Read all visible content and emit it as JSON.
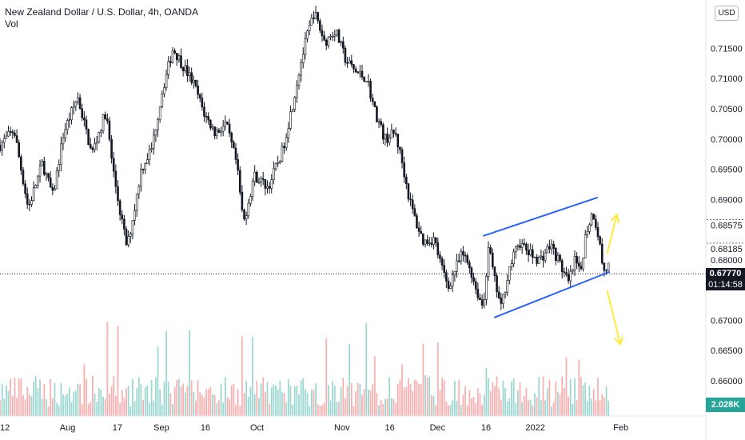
{
  "legend": {
    "title": "New Zealand Dollar / U.S. Dollar, 4h, OANDA",
    "volume_label": "Vol"
  },
  "currency_badge": "USD",
  "current_price": "0.67770",
  "countdown": "01:14:58",
  "volume_value": "2.028K",
  "colors": {
    "up": "#26a69a",
    "down": "#ef5350",
    "candle": "#131722",
    "channel": "#2962ff",
    "arrow": "#ffeb3b",
    "axis_text": "#131722"
  },
  "chart_data": {
    "type": "candlestick",
    "symbol": "NZDUSD",
    "timeframe": "4h",
    "ylim": [
      0.6555,
      0.723
    ],
    "y_ticks": [
      "0.66000",
      "0.66500",
      "0.67000",
      "0.68000",
      "0.68185",
      "0.68575",
      "0.69000",
      "0.69500",
      "0.70000",
      "0.70500",
      "0.71000",
      "0.71500"
    ],
    "y_tick_values": [
      0.66,
      0.665,
      0.67,
      0.68,
      0.68185,
      0.68575,
      0.69,
      0.695,
      0.7,
      0.705,
      0.71,
      0.715
    ],
    "x_ticks": [
      "12",
      "Aug",
      "17",
      "Sep",
      "16",
      "Oct",
      "Nov",
      "16",
      "Dec",
      "16",
      "2022",
      "Feb"
    ],
    "x_tick_positions": [
      0.0,
      0.0958,
      0.1663,
      0.2287,
      0.291,
      0.3641,
      0.4845,
      0.5522,
      0.6199,
      0.6886,
      0.7584,
      0.8795
    ],
    "price_path": [
      [
        0.0,
        0.699
      ],
      [
        0.02,
        0.7015
      ],
      [
        0.04,
        0.6885
      ],
      [
        0.06,
        0.696
      ],
      [
        0.075,
        0.6905
      ],
      [
        0.09,
        0.701
      ],
      [
        0.11,
        0.707
      ],
      [
        0.13,
        0.6975
      ],
      [
        0.15,
        0.7045
      ],
      [
        0.16,
        0.695
      ],
      [
        0.17,
        0.688
      ],
      [
        0.18,
        0.682
      ],
      [
        0.19,
        0.688
      ],
      [
        0.2,
        0.695
      ],
      [
        0.215,
        0.6985
      ],
      [
        0.23,
        0.708
      ],
      [
        0.245,
        0.715
      ],
      [
        0.26,
        0.712
      ],
      [
        0.275,
        0.709
      ],
      [
        0.29,
        0.704
      ],
      [
        0.305,
        0.701
      ],
      [
        0.32,
        0.7025
      ],
      [
        0.335,
        0.696
      ],
      [
        0.345,
        0.686
      ],
      [
        0.36,
        0.694
      ],
      [
        0.38,
        0.692
      ],
      [
        0.4,
        0.698
      ],
      [
        0.415,
        0.706
      ],
      [
        0.425,
        0.712
      ],
      [
        0.435,
        0.717
      ],
      [
        0.445,
        0.721
      ],
      [
        0.46,
        0.716
      ],
      [
        0.475,
        0.718
      ],
      [
        0.49,
        0.713
      ],
      [
        0.505,
        0.711
      ],
      [
        0.52,
        0.71
      ],
      [
        0.53,
        0.705
      ],
      [
        0.545,
        0.7
      ],
      [
        0.56,
        0.701
      ],
      [
        0.57,
        0.696
      ],
      [
        0.58,
        0.69
      ],
      [
        0.59,
        0.686
      ],
      [
        0.6,
        0.683
      ],
      [
        0.615,
        0.6835
      ],
      [
        0.625,
        0.679
      ],
      [
        0.635,
        0.6755
      ],
      [
        0.645,
        0.6785
      ],
      [
        0.655,
        0.681
      ],
      [
        0.665,
        0.679
      ],
      [
        0.675,
        0.675
      ],
      [
        0.685,
        0.672
      ],
      [
        0.692,
        0.6825
      ],
      [
        0.7,
        0.677
      ],
      [
        0.71,
        0.672
      ],
      [
        0.72,
        0.678
      ],
      [
        0.735,
        0.683
      ],
      [
        0.75,
        0.681
      ],
      [
        0.765,
        0.68
      ],
      [
        0.78,
        0.6825
      ],
      [
        0.795,
        0.679
      ],
      [
        0.805,
        0.676
      ],
      [
        0.815,
        0.68
      ],
      [
        0.822,
        0.6775
      ],
      [
        0.83,
        0.6845
      ],
      [
        0.84,
        0.688
      ],
      [
        0.848,
        0.684
      ],
      [
        0.855,
        0.678
      ],
      [
        0.862,
        0.679
      ],
      [
        0.87,
        0.679
      ],
      [
        0.88,
        0.6775
      ]
    ],
    "drawings": {
      "channel_upper": [
        [
          0.6855,
          0.684
        ],
        [
          0.846,
          0.6903
        ]
      ],
      "channel_lower": [
        [
          0.701,
          0.6705
        ],
        [
          0.863,
          0.678
        ]
      ],
      "arrow_up": [
        [
          0.86,
          0.681
        ],
        [
          0.874,
          0.6875
        ]
      ],
      "arrow_down": [
        [
          0.86,
          0.675
        ],
        [
          0.879,
          0.666
        ]
      ]
    },
    "current_price_value": 0.6777
  }
}
